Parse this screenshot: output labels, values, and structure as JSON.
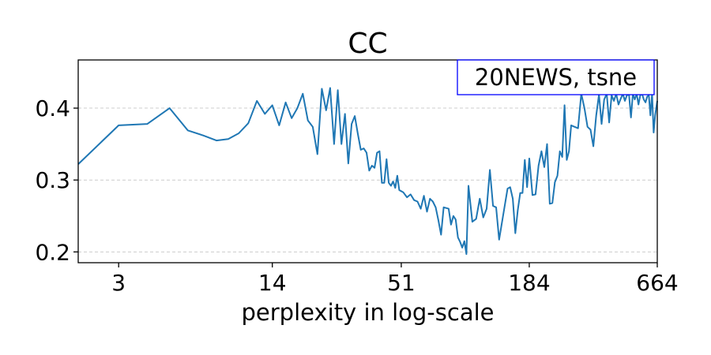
{
  "chart_data": {
    "type": "line",
    "title": "CC",
    "xlabel": "perplexity in log-scale",
    "ylabel": "",
    "x_scale": "log",
    "xlim": [
      2,
      664
    ],
    "ylim": [
      0.185,
      0.467
    ],
    "x_ticks": [
      3,
      14,
      51,
      184,
      664
    ],
    "x_tick_labels": [
      "3",
      "14",
      "51",
      "184",
      "664"
    ],
    "y_ticks": [
      0.2,
      0.3,
      0.4
    ],
    "y_tick_labels": [
      "0.2",
      "0.3",
      "0.4"
    ],
    "grid": "horizontal dashed",
    "annotation": "20NEWS, tsne",
    "annotation_position": "top-right",
    "line_color": "#1f77b4",
    "series": [
      {
        "x": [
          2,
          3,
          4,
          5,
          6,
          7,
          8,
          9,
          10,
          11,
          12,
          13,
          14,
          15,
          16,
          17,
          18,
          19,
          20,
          21,
          22,
          23,
          24,
          25,
          26,
          27,
          28,
          29,
          30,
          31,
          32,
          33,
          34,
          35,
          36,
          37,
          38,
          39,
          40,
          41,
          42,
          43,
          44,
          45,
          46,
          47,
          48,
          49,
          50,
          52,
          54,
          56,
          58,
          60,
          62,
          64,
          66,
          68,
          70,
          72,
          74,
          76,
          78,
          80,
          82,
          84,
          86,
          88,
          90,
          92,
          94,
          96,
          98,
          100,
          104,
          108,
          112,
          116,
          120,
          124,
          128,
          132,
          136,
          140,
          144,
          148,
          152,
          156,
          160,
          164,
          168,
          172,
          176,
          180,
          184,
          190,
          196,
          202,
          208,
          214,
          220,
          226,
          232,
          238,
          244,
          250,
          256,
          262,
          268,
          274,
          280,
          290,
          300,
          310,
          320,
          330,
          340,
          350,
          360,
          370,
          380,
          390,
          400,
          410,
          420,
          430,
          440,
          450,
          460,
          470,
          480,
          490,
          500,
          510,
          520,
          530,
          540,
          550,
          560,
          570,
          580,
          590,
          600,
          610,
          620,
          630,
          640,
          650,
          664
        ],
        "y": [
          0.322,
          0.376,
          0.378,
          0.4,
          0.369,
          0.362,
          0.355,
          0.357,
          0.365,
          0.379,
          0.41,
          0.392,
          0.404,
          0.376,
          0.408,
          0.386,
          0.4,
          0.42,
          0.383,
          0.374,
          0.336,
          0.427,
          0.397,
          0.428,
          0.35,
          0.425,
          0.35,
          0.392,
          0.323,
          0.378,
          0.389,
          0.364,
          0.342,
          0.344,
          0.338,
          0.313,
          0.32,
          0.317,
          0.338,
          0.34,
          0.296,
          0.296,
          0.329,
          0.296,
          0.292,
          0.298,
          0.289,
          0.306,
          0.286,
          0.283,
          0.276,
          0.28,
          0.272,
          0.27,
          0.26,
          0.278,
          0.256,
          0.274,
          0.27,
          0.262,
          0.244,
          0.224,
          0.262,
          0.261,
          0.26,
          0.238,
          0.25,
          0.245,
          0.22,
          0.214,
          0.206,
          0.215,
          0.197,
          0.292,
          0.242,
          0.246,
          0.274,
          0.248,
          0.26,
          0.314,
          0.264,
          0.262,
          0.217,
          0.241,
          0.265,
          0.288,
          0.29,
          0.274,
          0.226,
          0.258,
          0.282,
          0.282,
          0.328,
          0.29,
          0.33,
          0.279,
          0.28,
          0.32,
          0.34,
          0.318,
          0.35,
          0.267,
          0.268,
          0.297,
          0.306,
          0.34,
          0.332,
          0.404,
          0.328,
          0.34,
          0.376,
          0.374,
          0.372,
          0.42,
          0.4,
          0.374,
          0.37,
          0.347,
          0.39,
          0.419,
          0.378,
          0.412,
          0.42,
          0.38,
          0.418,
          0.41,
          0.42,
          0.405,
          0.413,
          0.42,
          0.41,
          0.418,
          0.419,
          0.387,
          0.42,
          0.412,
          0.42,
          0.405,
          0.418,
          0.42,
          0.412,
          0.408,
          0.416,
          0.418,
          0.39,
          0.42,
          0.366,
          0.39,
          0.41
        ]
      }
    ]
  }
}
